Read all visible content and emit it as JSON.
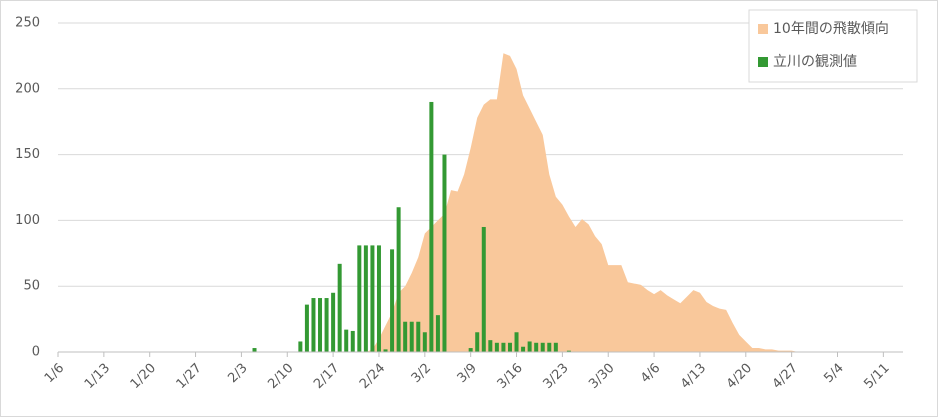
{
  "chart_data": {
    "type": "bar-area",
    "categories": [
      "1/6",
      null,
      null,
      null,
      null,
      null,
      null,
      "1/13",
      null,
      null,
      null,
      null,
      null,
      null,
      "1/20",
      null,
      null,
      null,
      null,
      null,
      null,
      "1/27",
      null,
      null,
      null,
      null,
      null,
      null,
      "2/3",
      null,
      null,
      null,
      null,
      null,
      null,
      "2/10",
      null,
      null,
      null,
      null,
      null,
      null,
      "2/17",
      null,
      null,
      null,
      null,
      null,
      null,
      "2/24",
      null,
      null,
      null,
      null,
      null,
      null,
      "3/2",
      null,
      null,
      null,
      null,
      null,
      null,
      "3/9",
      null,
      null,
      null,
      null,
      null,
      null,
      "3/16",
      null,
      null,
      null,
      null,
      null,
      null,
      "3/23",
      null,
      null,
      null,
      null,
      null,
      null,
      "3/30",
      null,
      null,
      null,
      null,
      null,
      null,
      "4/6",
      null,
      null,
      null,
      null,
      null,
      null,
      "4/13",
      null,
      null,
      null,
      null,
      null,
      null,
      "4/20",
      null,
      null,
      null,
      null,
      null,
      null,
      "4/27",
      null,
      null,
      null,
      null,
      null,
      null,
      "5/4",
      null,
      null,
      null,
      null,
      null,
      null,
      "5/11",
      null,
      null
    ],
    "series": [
      {
        "name": "10年間の飛散傾向",
        "type": "area",
        "color": "#f9c89b",
        "values": [
          0,
          0,
          0,
          0,
          0,
          0,
          0,
          0,
          0,
          0,
          0,
          0,
          0,
          0,
          0,
          0,
          0,
          0,
          0,
          0,
          0,
          0,
          0,
          0,
          0,
          0,
          0,
          0,
          0,
          0,
          0,
          0,
          0,
          0,
          0,
          0,
          0,
          0,
          0,
          0,
          0,
          0,
          0,
          0,
          0,
          0,
          0,
          0,
          2,
          10,
          20,
          30,
          45,
          50,
          60,
          72,
          90,
          95,
          100,
          105,
          123,
          122,
          135,
          155,
          178,
          188,
          192,
          192,
          227,
          225,
          215,
          195,
          185,
          175,
          165,
          135,
          118,
          112,
          103,
          95,
          101,
          97,
          88,
          82,
          66,
          66,
          66,
          53,
          52,
          51,
          47,
          44,
          47,
          43,
          40,
          37,
          42,
          47,
          45,
          38,
          35,
          33,
          32,
          22,
          13,
          8,
          3,
          3,
          2,
          2,
          1,
          1,
          1,
          0,
          0,
          0,
          0,
          0,
          0,
          0,
          0,
          0,
          0,
          0,
          0,
          0,
          0,
          0,
          0
        ]
      },
      {
        "name": "立川の観測値",
        "type": "bar",
        "color": "#339933",
        "values": [
          0,
          0,
          0,
          0,
          0,
          0,
          0,
          0,
          0,
          0,
          0,
          0,
          0,
          0,
          0,
          0,
          0,
          0,
          0,
          0,
          0,
          0,
          0,
          0,
          0,
          0,
          0,
          0,
          0,
          0,
          3,
          0,
          0,
          0,
          0,
          0,
          0,
          8,
          36,
          41,
          41,
          41,
          45,
          67,
          17,
          16,
          81,
          81,
          81,
          81,
          2,
          78,
          110,
          23,
          23,
          23,
          15,
          190,
          28,
          150,
          0,
          0,
          0,
          3,
          15,
          95,
          9,
          7,
          7,
          7,
          15,
          4,
          8,
          7,
          7,
          7,
          7,
          0,
          1,
          0,
          0,
          0,
          0,
          0,
          0,
          0,
          0,
          0,
          0,
          0,
          0,
          0,
          0,
          0,
          0,
          0,
          0,
          0,
          0,
          0,
          0,
          0,
          0,
          0,
          0,
          0,
          0,
          0,
          0,
          0,
          0,
          0,
          0,
          0,
          0,
          0,
          0,
          0,
          0,
          0,
          0,
          0,
          0,
          0,
          0,
          0,
          0,
          0,
          0
        ]
      }
    ],
    "ylim": [
      0,
      250
    ],
    "yticks": [
      0,
      50,
      100,
      150,
      200,
      250
    ],
    "grid": true,
    "legend": "top-right"
  }
}
